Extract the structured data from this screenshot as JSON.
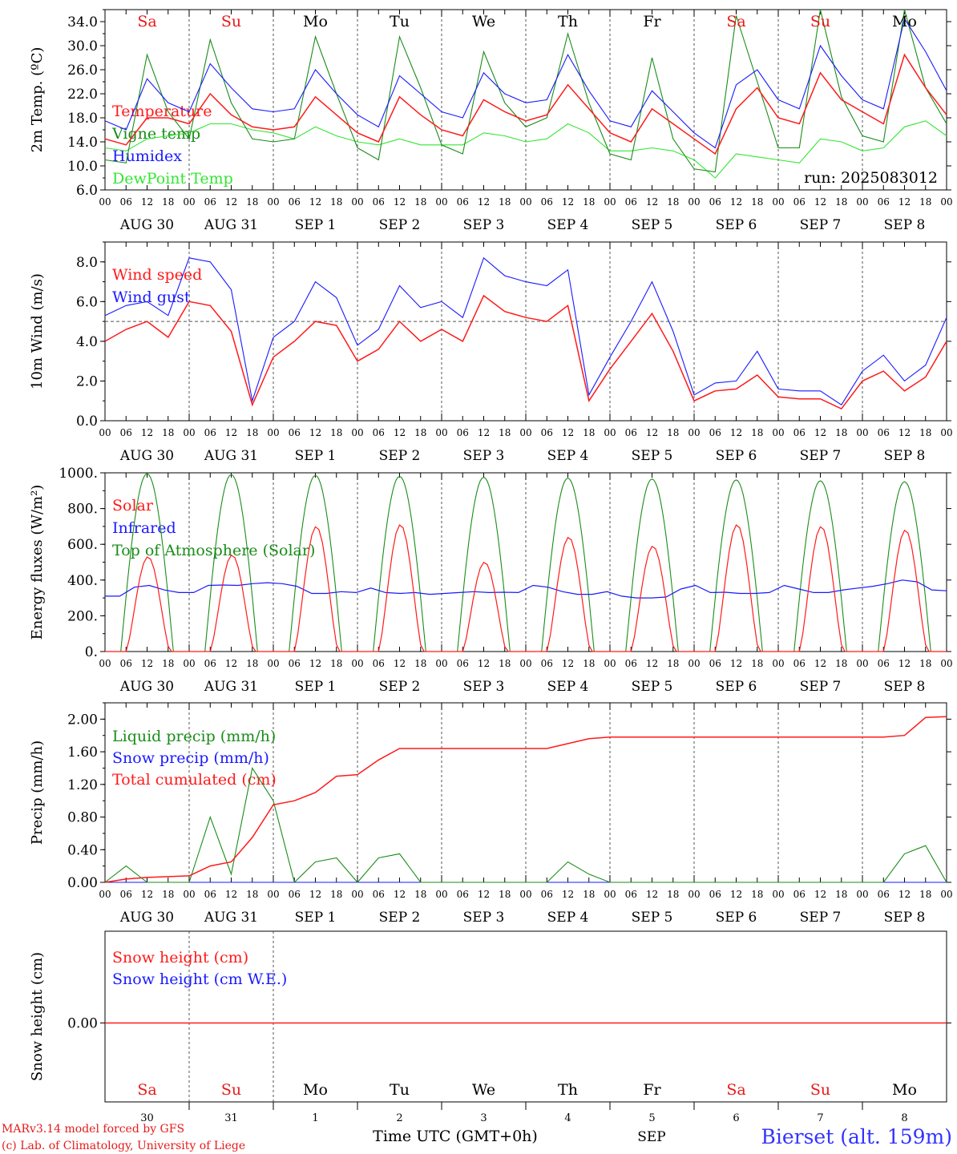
{
  "colors": {
    "red": "#ff1a1a",
    "green": "#1a8c1a",
    "blue": "#1a1aff",
    "lime": "#33e633",
    "axis": "#000000",
    "grid": "#666666"
  },
  "chart_data": [
    {
      "type": "line",
      "title": "",
      "ylabel": "2m Temp. (ºC)",
      "ylim": [
        6.0,
        36.0
      ],
      "yticks": [
        "6.0",
        "10.0",
        "14.0",
        "18.0",
        "22.0",
        "26.0",
        "30.0",
        "34.0"
      ],
      "ytick_values": [
        6,
        10,
        14,
        18,
        22,
        26,
        30,
        34
      ],
      "day_labels": [
        {
          "text": "Sa",
          "color": "red"
        },
        {
          "text": "Su",
          "color": "red"
        },
        {
          "text": "Mo",
          "color": "black"
        },
        {
          "text": "Tu",
          "color": "black"
        },
        {
          "text": "We",
          "color": "black"
        },
        {
          "text": "Th",
          "color": "black"
        },
        {
          "text": "Fr",
          "color": "black"
        },
        {
          "text": "Sa",
          "color": "red"
        },
        {
          "text": "Su",
          "color": "red"
        },
        {
          "text": "Mo",
          "color": "black"
        }
      ],
      "run_label": "run: 2025083012",
      "x_hours": [
        0,
        6,
        12,
        18,
        24,
        30,
        36,
        42,
        48,
        54,
        60,
        66,
        72,
        78,
        84,
        90,
        96,
        102,
        108,
        114,
        120,
        126,
        132,
        138,
        144,
        150,
        156,
        162,
        168,
        174,
        180,
        186,
        192,
        198,
        204,
        210,
        216,
        222,
        228,
        234,
        240
      ],
      "series": [
        {
          "name": "Temperature",
          "color": "red",
          "values": [
            14.5,
            13.5,
            18.0,
            18.0,
            17.0,
            22.0,
            18.5,
            16.5,
            16.0,
            16.5,
            21.5,
            18.5,
            15.5,
            14.0,
            21.5,
            18.5,
            16.0,
            15.0,
            21.0,
            19.0,
            17.5,
            18.5,
            23.5,
            19.5,
            15.5,
            14.0,
            19.5,
            17.0,
            14.5,
            12.0,
            19.5,
            23.0,
            18.0,
            17.0,
            25.5,
            21.0,
            19.0,
            17.0,
            28.5,
            23.0,
            18.5
          ]
        },
        {
          "name": "Vigne temp",
          "color": "green",
          "values": [
            11.0,
            10.5,
            28.5,
            19.0,
            14.5,
            31.0,
            20.5,
            14.5,
            14.0,
            14.5,
            31.5,
            22.0,
            13.0,
            11.0,
            31.5,
            23.0,
            13.5,
            12.0,
            29.0,
            20.5,
            16.5,
            18.0,
            32.0,
            20.5,
            12.0,
            11.0,
            28.0,
            14.5,
            9.5,
            9.0,
            35.0,
            24.0,
            13.0,
            13.0,
            36.0,
            21.5,
            15.0,
            14.0,
            36.0,
            23.0,
            17.0
          ]
        },
        {
          "name": "Humidex",
          "color": "blue",
          "values": [
            17.5,
            16.0,
            24.5,
            20.5,
            19.0,
            27.0,
            23.0,
            19.5,
            19.0,
            19.5,
            26.0,
            22.0,
            18.5,
            16.5,
            25.0,
            22.0,
            19.0,
            18.0,
            25.5,
            22.0,
            20.5,
            21.0,
            28.5,
            22.5,
            17.5,
            16.5,
            22.5,
            19.0,
            15.5,
            13.0,
            23.5,
            26.0,
            21.0,
            19.5,
            30.0,
            25.0,
            21.0,
            19.5,
            34.5,
            29.0,
            22.5
          ]
        },
        {
          "name": "DewPoint Temp",
          "color": "lime",
          "values": [
            13.0,
            12.5,
            14.5,
            15.0,
            15.5,
            17.0,
            17.0,
            16.0,
            15.5,
            14.5,
            16.5,
            15.0,
            14.0,
            13.5,
            14.5,
            13.5,
            13.5,
            13.5,
            15.5,
            15.0,
            14.0,
            14.5,
            17.0,
            15.5,
            12.5,
            12.5,
            13.0,
            12.5,
            11.0,
            8.0,
            12.0,
            11.5,
            11.0,
            10.5,
            14.5,
            14.0,
            12.5,
            13.0,
            16.5,
            17.5,
            15.0
          ]
        }
      ]
    },
    {
      "type": "line",
      "title": "",
      "ylabel": "10m Wind (m/s)",
      "ylim": [
        0.0,
        9.0
      ],
      "yticks": [
        "0.0",
        "2.0",
        "4.0",
        "6.0",
        "8.0"
      ],
      "ytick_values": [
        0,
        2,
        4,
        6,
        8
      ],
      "reference_line": 5.0,
      "x_hours": [
        0,
        6,
        12,
        18,
        24,
        30,
        36,
        42,
        48,
        54,
        60,
        66,
        72,
        78,
        84,
        90,
        96,
        102,
        108,
        114,
        120,
        126,
        132,
        138,
        144,
        150,
        156,
        162,
        168,
        174,
        180,
        186,
        192,
        198,
        204,
        210,
        216,
        222,
        228,
        234,
        240
      ],
      "series": [
        {
          "name": "Wind speed",
          "color": "red",
          "values": [
            4.0,
            4.6,
            5.0,
            4.2,
            6.0,
            5.8,
            4.5,
            0.8,
            3.2,
            4.0,
            5.0,
            4.8,
            3.0,
            3.6,
            5.0,
            4.0,
            4.6,
            4.0,
            6.3,
            5.5,
            5.2,
            5.0,
            5.8,
            1.0,
            2.6,
            4.0,
            5.4,
            3.5,
            1.0,
            1.5,
            1.6,
            2.3,
            1.2,
            1.1,
            1.1,
            0.6,
            2.0,
            2.5,
            1.5,
            2.2,
            4.0
          ]
        },
        {
          "name": "Wind gust",
          "color": "blue",
          "values": [
            5.3,
            5.8,
            6.0,
            5.3,
            8.2,
            8.0,
            6.6,
            1.0,
            4.2,
            5.0,
            7.0,
            6.2,
            3.8,
            4.6,
            6.8,
            5.7,
            6.0,
            5.2,
            8.2,
            7.3,
            7.0,
            6.8,
            7.6,
            1.3,
            3.2,
            5.0,
            7.0,
            4.5,
            1.3,
            1.9,
            2.0,
            3.5,
            1.6,
            1.5,
            1.5,
            0.8,
            2.5,
            3.3,
            2.0,
            2.8,
            5.2
          ]
        }
      ]
    },
    {
      "type": "line",
      "title": "",
      "ylabel": "Energy fluxes (W/m²)",
      "ylim": [
        0,
        1000
      ],
      "yticks": [
        "0.",
        "200.",
        "400.",
        "600.",
        "800.",
        "1000."
      ],
      "ytick_values": [
        0,
        200,
        400,
        600,
        800,
        1000
      ],
      "daily_peaks": {
        "top_of_atmosphere": [
          995,
          990,
          985,
          980,
          975,
          970,
          965,
          960,
          955,
          950
        ],
        "solar": [
          530,
          540,
          700,
          710,
          500,
          640,
          590,
          710,
          700,
          680
        ]
      },
      "infrared_hourly": [
        310,
        310,
        360,
        370,
        345,
        330,
        330,
        370,
        372,
        370,
        380,
        385,
        380,
        365,
        325,
        325,
        335,
        330,
        355,
        330,
        325,
        330,
        320,
        325,
        330,
        335,
        330,
        332,
        330,
        370,
        360,
        335,
        320,
        320,
        335,
        310,
        300,
        300,
        305,
        350,
        370,
        330,
        332,
        325,
        325,
        330,
        370,
        350,
        330,
        330,
        345,
        355,
        365,
        380,
        400,
        390,
        345,
        340
      ],
      "series": [
        {
          "name": "Solar",
          "color": "red"
        },
        {
          "name": "Infrared",
          "color": "blue"
        },
        {
          "name": "Top of Atmosphere (Solar)",
          "color": "green"
        }
      ]
    },
    {
      "type": "line",
      "title": "",
      "ylabel": "Precip (mm/h)",
      "ylim": [
        0.0,
        2.2
      ],
      "yticks": [
        "0.00",
        "0.40",
        "0.80",
        "1.20",
        "1.60",
        "2.00"
      ],
      "ytick_values": [
        0,
        0.4,
        0.8,
        1.2,
        1.6,
        2.0
      ],
      "x_hours": [
        0,
        6,
        12,
        18,
        24,
        30,
        36,
        42,
        48,
        54,
        60,
        66,
        72,
        78,
        84,
        90,
        96,
        102,
        108,
        114,
        120,
        126,
        132,
        138,
        144,
        150,
        156,
        162,
        168,
        174,
        180,
        186,
        192,
        198,
        204,
        210,
        216,
        222,
        228,
        234,
        240
      ],
      "series": [
        {
          "name": "Liquid precip (mm/h)",
          "color": "green",
          "values": [
            0.0,
            0.2,
            0.0,
            0.0,
            0.0,
            0.8,
            0.1,
            1.4,
            1.0,
            0.0,
            0.25,
            0.3,
            0.0,
            0.3,
            0.35,
            0.0,
            0.0,
            0.0,
            0.0,
            0.0,
            0.0,
            0.0,
            0.25,
            0.1,
            0.0,
            0.0,
            0.0,
            0.0,
            0.0,
            0.0,
            0.0,
            0.0,
            0.0,
            0.0,
            0.0,
            0.0,
            0.0,
            0.0,
            0.35,
            0.45,
            0.0
          ]
        },
        {
          "name": "Snow precip (mm/h)",
          "color": "blue",
          "values": [
            0,
            0,
            0,
            0,
            0,
            0,
            0,
            0,
            0,
            0,
            0,
            0,
            0,
            0,
            0,
            0,
            0,
            0,
            0,
            0,
            0,
            0,
            0,
            0,
            0,
            0,
            0,
            0,
            0,
            0,
            0,
            0,
            0,
            0,
            0,
            0,
            0,
            0,
            0,
            0,
            0
          ]
        },
        {
          "name": "Total cumulated (cm)",
          "color": "red",
          "values": [
            0.0,
            0.04,
            0.06,
            0.07,
            0.08,
            0.2,
            0.25,
            0.55,
            0.95,
            1.0,
            1.1,
            1.3,
            1.32,
            1.5,
            1.64,
            1.64,
            1.64,
            1.64,
            1.64,
            1.64,
            1.64,
            1.64,
            1.7,
            1.76,
            1.78,
            1.78,
            1.78,
            1.78,
            1.78,
            1.78,
            1.78,
            1.78,
            1.78,
            1.78,
            1.78,
            1.78,
            1.78,
            1.78,
            1.8,
            2.02,
            2.03
          ]
        }
      ]
    },
    {
      "type": "line",
      "title": "",
      "ylabel": "Snow height (cm)",
      "yticks": [
        "0.00"
      ],
      "ytick_values": [
        0
      ],
      "series": [
        {
          "name": "Snow height (cm)",
          "color": "red",
          "values": [
            0,
            0
          ]
        },
        {
          "name": "Snow height (cm W.E.)",
          "color": "blue",
          "values": [
            0,
            0
          ]
        }
      ],
      "day_labels": [
        {
          "text": "Sa",
          "color": "red"
        },
        {
          "text": "Su",
          "color": "red"
        },
        {
          "text": "Mo",
          "color": "black"
        },
        {
          "text": "Tu",
          "color": "black"
        },
        {
          "text": "We",
          "color": "black"
        },
        {
          "text": "Th",
          "color": "black"
        },
        {
          "text": "Fr",
          "color": "black"
        },
        {
          "text": "Sa",
          "color": "red"
        },
        {
          "text": "Su",
          "color": "red"
        },
        {
          "text": "Mo",
          "color": "black"
        }
      ],
      "day_numbers": [
        "30",
        "31",
        "1",
        "2",
        "3",
        "4",
        "5",
        "6",
        "7",
        "8"
      ],
      "month_label": "SEP",
      "xlabel": "Time UTC (GMT+0h)"
    }
  ],
  "x_axis": {
    "hour_labels": [
      "00",
      "06",
      "12",
      "18"
    ],
    "final_hour_label": "00",
    "date_labels": [
      "AUG 30",
      "AUG 31",
      "SEP  1",
      "SEP  2",
      "SEP  3",
      "SEP  4",
      "SEP  5",
      "SEP  6",
      "SEP  7",
      "SEP  8"
    ]
  },
  "footer": {
    "model_line": "MARv3.14 model forced by GFS",
    "credit_line": "(c) Lab. of Climatology, University of Liege",
    "station": "Bierset (alt. 159m)"
  }
}
